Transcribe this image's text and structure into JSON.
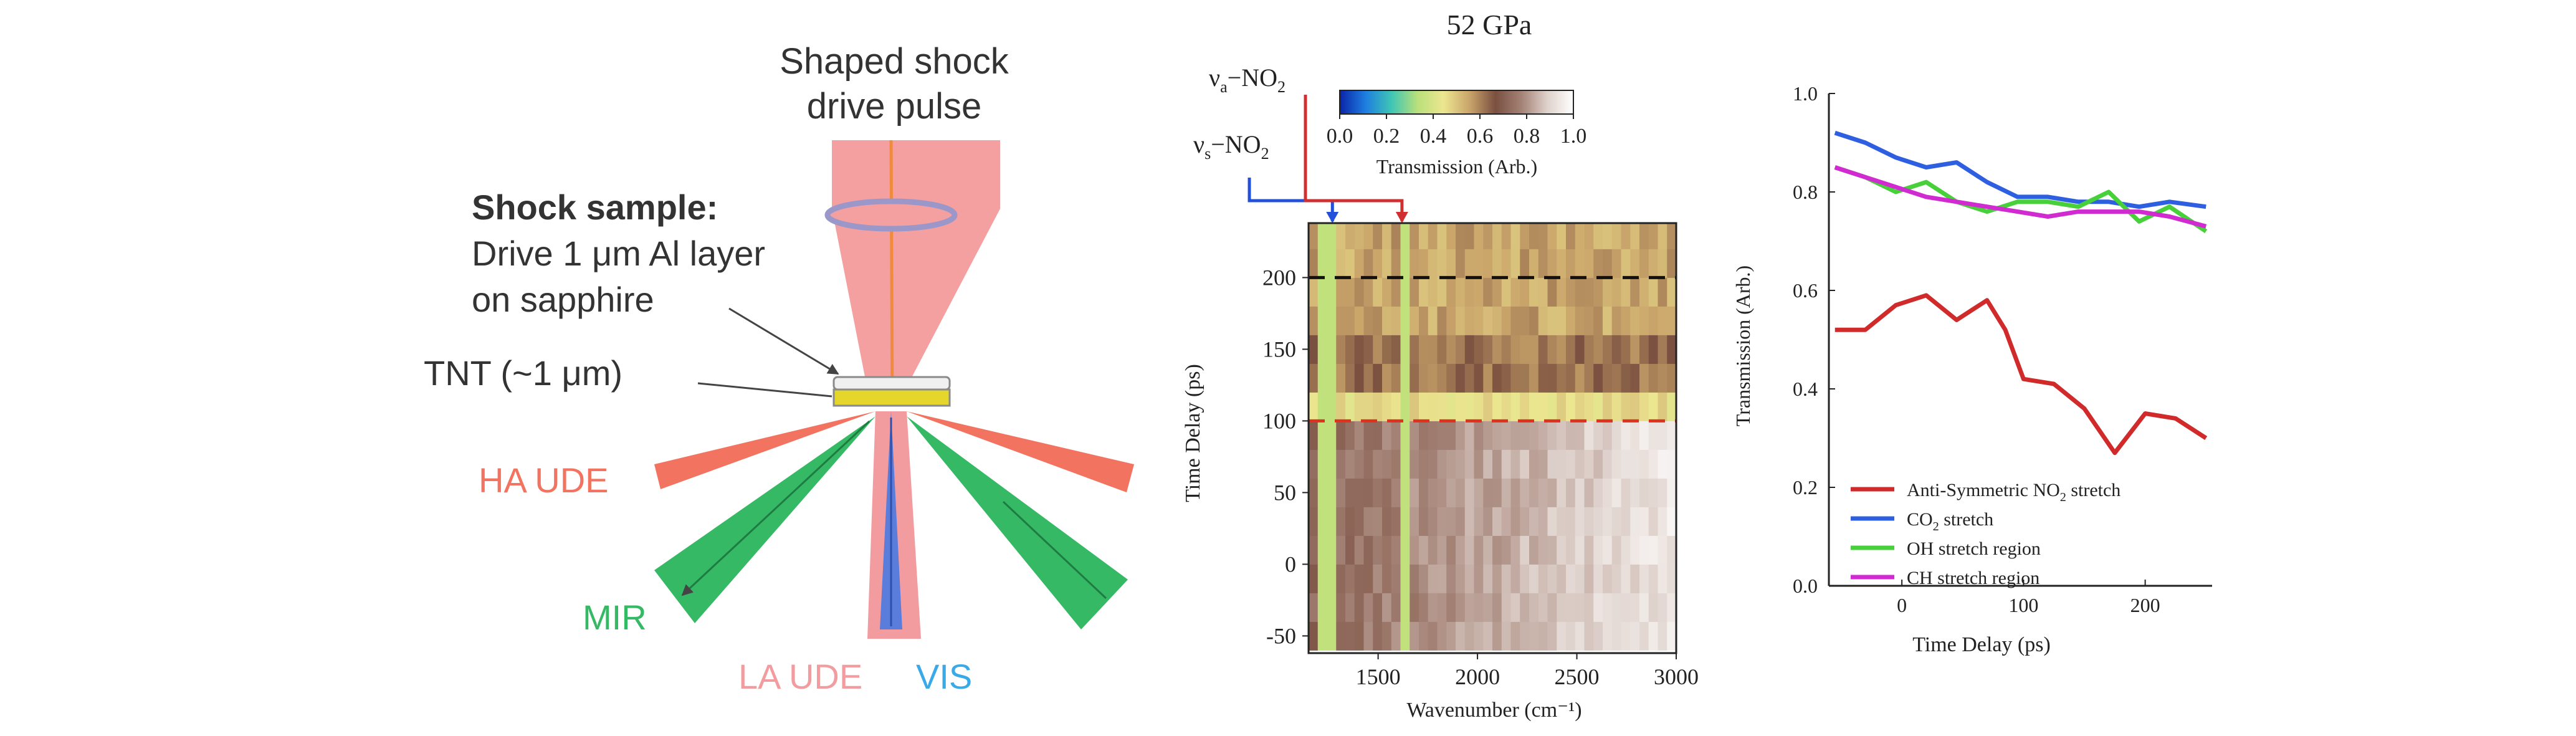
{
  "diagram": {
    "pulse_label_line1": "Shaped shock",
    "pulse_label_line2": "drive pulse",
    "sample_heading": "Shock sample:",
    "sample_line1": "Drive 1 μm Al layer",
    "sample_line2": "on sapphire",
    "tnt_label": "TNT (~1 μm)",
    "ha_ude_label": "HA UDE",
    "mir_label": "MIR",
    "la_ude_label": "LA UDE",
    "vis_label": "VIS",
    "colors": {
      "drive_beam": "#f5a0a0",
      "ha_ude": "#f2735f",
      "mir": "#35b964",
      "la_ude": "#f39ca0",
      "vis": "#4f7fd8",
      "vis_text": "#3aa9e8",
      "tnt_layer": "#e4d62a",
      "lens": "#9b97c9"
    }
  },
  "chart_data": [
    {
      "type": "heatmap",
      "title": "52 GPa",
      "xlabel": "Wavenumber (cm⁻¹)",
      "ylabel": "Time Delay (ps)",
      "xlim": [
        1150,
        3000
      ],
      "ylim": [
        -62,
        238
      ],
      "x_ticks": [
        "1500",
        "2000",
        "2500",
        "3000"
      ],
      "x_tick_values": [
        1500,
        2000,
        2500,
        3000
      ],
      "y_ticks": [
        "-50",
        "0",
        "50",
        "100",
        "150",
        "200"
      ],
      "y_tick_values": [
        -50,
        0,
        50,
        100,
        150,
        200
      ],
      "colorbar": {
        "label": "Transmission (Arb.)",
        "ticks": [
          "0.0",
          "0.2",
          "0.4",
          "0.6",
          "0.8",
          "1.0"
        ],
        "range": [
          0,
          1
        ],
        "colors": [
          "#0b24a8",
          "#1e7fe0",
          "#3fc6b4",
          "#b9e07a",
          "#ece690",
          "#c9a46a",
          "#7a5040",
          "#a48276",
          "#dfd2cc",
          "#ffffff"
        ]
      },
      "annotations": {
        "vs": {
          "label_main": "ν",
          "label_sub": "s",
          "label_tail": "−NO",
          "label_sub2": "2",
          "wavenumber": 1270,
          "color": "#2350d8"
        },
        "va": {
          "label_main": "ν",
          "label_sub": "a",
          "label_tail": "−NO",
          "label_sub2": "2",
          "wavenumber": 1620,
          "color": "#d03030"
        }
      },
      "reference_lines": [
        {
          "time": 200,
          "color": "#111111",
          "style": "dashed"
        },
        {
          "time": 100,
          "color": "#e03020",
          "style": "dashed"
        }
      ],
      "time_rows": [
        -60,
        -40,
        -20,
        0,
        20,
        40,
        60,
        80,
        100,
        120,
        140,
        160,
        180,
        200,
        220,
        238
      ],
      "bright_bands": [
        {
          "wavenumber": 1240,
          "value": 0.35
        },
        {
          "wavenumber": 1630,
          "value": 0.35
        }
      ]
    },
    {
      "type": "line",
      "xlabel": "Time Delay (ps)",
      "ylabel": "Transmission (Arb.)",
      "xlim": [
        -60,
        255
      ],
      "ylim": [
        0,
        1.0
      ],
      "x_ticks": [
        "0",
        "100",
        "200"
      ],
      "x_tick_values": [
        0,
        100,
        200
      ],
      "y_ticks": [
        "0.0",
        "0.2",
        "0.4",
        "0.6",
        "0.8",
        "1.0"
      ],
      "y_tick_values": [
        0,
        0.2,
        0.4,
        0.6,
        0.8,
        1.0
      ],
      "legend_position": "bottom-left",
      "legend": [
        {
          "label": "Anti-Symmetric NO",
          "sub": "2",
          "tail": " stretch",
          "color": "#d02a2a"
        },
        {
          "label": "CO",
          "sub": "2",
          "tail": " stretch",
          "color": "#2e5fe0"
        },
        {
          "label": "OH stretch region",
          "sub": "",
          "tail": "",
          "color": "#47d03a"
        },
        {
          "label": "CH stretch region",
          "sub": "",
          "tail": "",
          "color": "#d02ad0"
        }
      ],
      "series": [
        {
          "name": "Anti-Symmetric NO2 stretch",
          "color": "#d02a2a",
          "x": [
            -55,
            -30,
            -5,
            20,
            45,
            70,
            85,
            100,
            125,
            150,
            175,
            200,
            225,
            250
          ],
          "y": [
            0.52,
            0.52,
            0.57,
            0.59,
            0.54,
            0.58,
            0.52,
            0.42,
            0.41,
            0.36,
            0.27,
            0.35,
            0.34,
            0.3
          ]
        },
        {
          "name": "CO2 stretch",
          "color": "#2e5fe0",
          "x": [
            -55,
            -30,
            -5,
            20,
            45,
            70,
            95,
            120,
            145,
            170,
            195,
            220,
            250
          ],
          "y": [
            0.92,
            0.9,
            0.87,
            0.85,
            0.86,
            0.82,
            0.79,
            0.79,
            0.78,
            0.78,
            0.77,
            0.78,
            0.77
          ]
        },
        {
          "name": "OH stretch region",
          "color": "#47d03a",
          "x": [
            -55,
            -30,
            -5,
            20,
            45,
            70,
            95,
            120,
            145,
            170,
            195,
            220,
            250
          ],
          "y": [
            0.85,
            0.83,
            0.8,
            0.82,
            0.78,
            0.76,
            0.78,
            0.78,
            0.77,
            0.8,
            0.74,
            0.77,
            0.72
          ]
        },
        {
          "name": "CH stretch region",
          "color": "#d02ad0",
          "x": [
            -55,
            -30,
            -5,
            20,
            45,
            70,
            95,
            120,
            145,
            170,
            195,
            220,
            250
          ],
          "y": [
            0.85,
            0.83,
            0.81,
            0.79,
            0.78,
            0.77,
            0.76,
            0.75,
            0.76,
            0.76,
            0.76,
            0.75,
            0.73
          ]
        }
      ]
    }
  ]
}
